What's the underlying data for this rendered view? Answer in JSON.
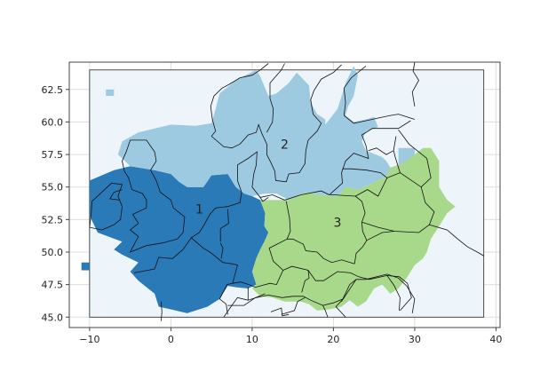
{
  "chart_data": {
    "type": "heatmap",
    "title": "",
    "xlabel": "",
    "ylabel": "",
    "xlim": [
      -12.5,
      40.5
    ],
    "ylim": [
      44.2,
      64.6
    ],
    "x_ticks": [
      -10,
      0,
      10,
      20,
      30,
      40
    ],
    "y_ticks": [
      45.0,
      47.5,
      50.0,
      52.5,
      55.0,
      57.5,
      60.0,
      62.5
    ],
    "x_tick_labels": [
      "−10",
      "0",
      "10",
      "20",
      "30",
      "40"
    ],
    "y_tick_labels": [
      "45.0",
      "47.5",
      "50.0",
      "52.5",
      "55.0",
      "57.5",
      "60.0",
      "62.5"
    ],
    "grid": true,
    "domain_extent": {
      "lon": [
        -10,
        38.5
      ],
      "lat": [
        45,
        64
      ]
    },
    "background_color": "#eef5fa",
    "regions": [
      {
        "label": "1",
        "color": "#2b7ab8",
        "label_lon": 3.5,
        "label_lat": 53.3
      },
      {
        "label": "2",
        "color": "#9ecae1",
        "label_lon": 14.0,
        "label_lat": 58.3
      },
      {
        "label": "3",
        "color": "#a8d88a",
        "label_lon": 20.5,
        "label_lat": 52.3
      }
    ]
  }
}
